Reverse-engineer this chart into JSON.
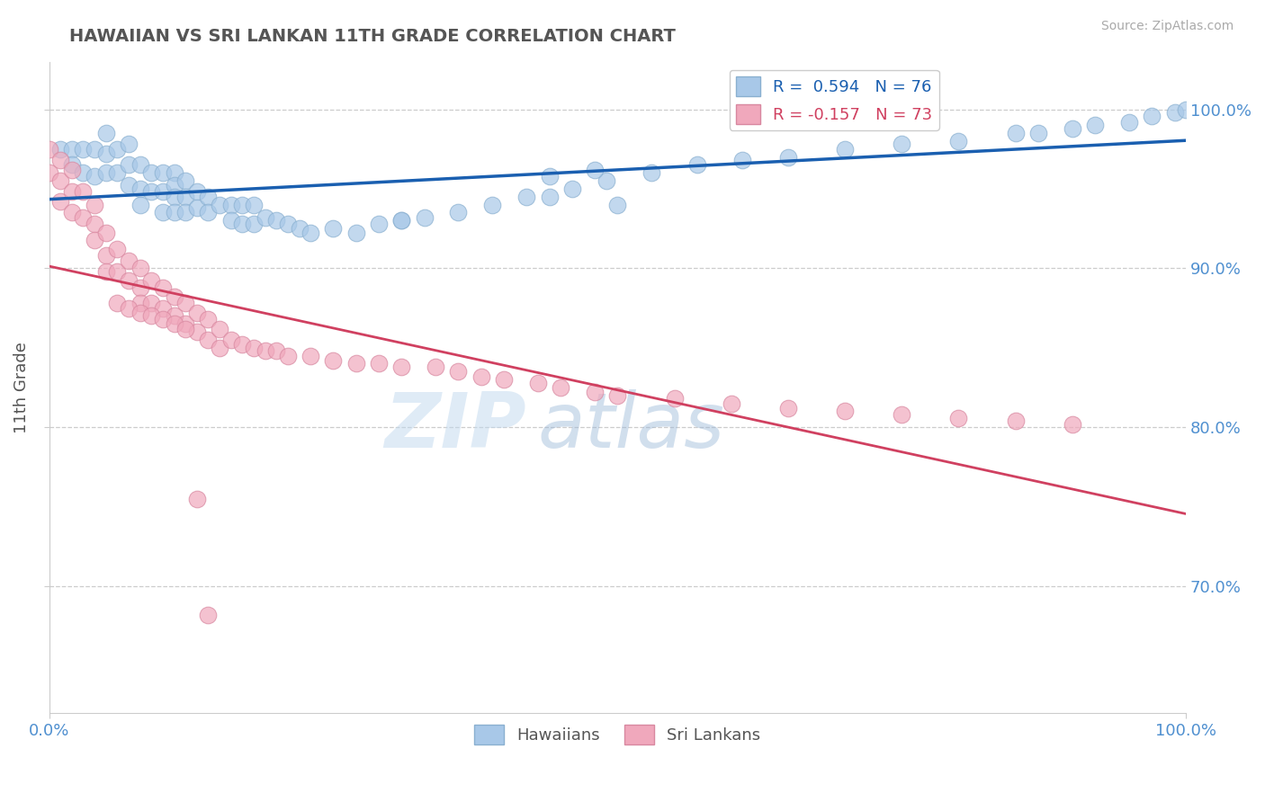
{
  "title": "HAWAIIAN VS SRI LANKAN 11TH GRADE CORRELATION CHART",
  "source": "Source: ZipAtlas.com",
  "ylabel": "11th Grade",
  "xlim": [
    0.0,
    1.0
  ],
  "ylim": [
    0.62,
    1.03
  ],
  "yticks": [
    0.7,
    0.8,
    0.9,
    1.0
  ],
  "ytick_labels": [
    "70.0%",
    "80.0%",
    "90.0%",
    "100.0%"
  ],
  "xtick_labels": [
    "0.0%",
    "100.0%"
  ],
  "legend_r1": "R =  0.594   N = 76",
  "legend_r2": "R = -0.157   N = 73",
  "hawaiian_color": "#a8c8e8",
  "srilanka_color": "#f0a8bc",
  "trendline_blue": "#1a5fb0",
  "trendline_pink": "#d04060",
  "legend_label1": "Hawaiians",
  "legend_label2": "Sri Lankans",
  "background_color": "#ffffff",
  "grid_color": "#cccccc",
  "watermark_zip": "ZIP",
  "watermark_atlas": "atlas",
  "title_color": "#555555",
  "label_color": "#5090d0",
  "hawaiian_x": [
    0.01,
    0.02,
    0.02,
    0.03,
    0.03,
    0.04,
    0.04,
    0.05,
    0.05,
    0.05,
    0.06,
    0.06,
    0.07,
    0.07,
    0.07,
    0.08,
    0.08,
    0.08,
    0.09,
    0.09,
    0.1,
    0.1,
    0.1,
    0.11,
    0.11,
    0.11,
    0.11,
    0.12,
    0.12,
    0.12,
    0.13,
    0.13,
    0.14,
    0.14,
    0.15,
    0.16,
    0.16,
    0.17,
    0.17,
    0.18,
    0.18,
    0.19,
    0.2,
    0.21,
    0.22,
    0.23,
    0.25,
    0.27,
    0.29,
    0.31,
    0.33,
    0.36,
    0.39,
    0.42,
    0.46,
    0.49,
    0.53,
    0.57,
    0.61,
    0.65,
    0.7,
    0.75,
    0.8,
    0.85,
    0.87,
    0.9,
    0.92,
    0.95,
    0.97,
    0.99,
    1.0,
    0.44,
    0.48,
    0.44,
    0.31,
    0.5
  ],
  "hawaiian_y": [
    0.975,
    0.975,
    0.965,
    0.975,
    0.96,
    0.975,
    0.958,
    0.985,
    0.972,
    0.96,
    0.975,
    0.96,
    0.978,
    0.965,
    0.952,
    0.965,
    0.95,
    0.94,
    0.96,
    0.948,
    0.96,
    0.948,
    0.935,
    0.96,
    0.952,
    0.945,
    0.935,
    0.955,
    0.945,
    0.935,
    0.948,
    0.938,
    0.945,
    0.935,
    0.94,
    0.94,
    0.93,
    0.94,
    0.928,
    0.94,
    0.928,
    0.932,
    0.93,
    0.928,
    0.925,
    0.922,
    0.925,
    0.922,
    0.928,
    0.93,
    0.932,
    0.935,
    0.94,
    0.945,
    0.95,
    0.955,
    0.96,
    0.965,
    0.968,
    0.97,
    0.975,
    0.978,
    0.98,
    0.985,
    0.985,
    0.988,
    0.99,
    0.992,
    0.996,
    0.998,
    1.0,
    0.958,
    0.962,
    0.945,
    0.93,
    0.94
  ],
  "srilanka_x": [
    0.0,
    0.0,
    0.01,
    0.01,
    0.01,
    0.02,
    0.02,
    0.02,
    0.03,
    0.03,
    0.04,
    0.04,
    0.04,
    0.05,
    0.05,
    0.05,
    0.06,
    0.06,
    0.07,
    0.07,
    0.08,
    0.08,
    0.08,
    0.09,
    0.09,
    0.1,
    0.1,
    0.11,
    0.11,
    0.12,
    0.12,
    0.13,
    0.13,
    0.14,
    0.14,
    0.15,
    0.15,
    0.16,
    0.17,
    0.18,
    0.19,
    0.2,
    0.21,
    0.23,
    0.25,
    0.27,
    0.29,
    0.31,
    0.34,
    0.36,
    0.38,
    0.4,
    0.43,
    0.45,
    0.48,
    0.5,
    0.55,
    0.6,
    0.65,
    0.7,
    0.75,
    0.8,
    0.85,
    0.9,
    0.06,
    0.07,
    0.08,
    0.09,
    0.1,
    0.11,
    0.12,
    0.13,
    0.14
  ],
  "srilanka_y": [
    0.975,
    0.96,
    0.968,
    0.955,
    0.942,
    0.962,
    0.948,
    0.935,
    0.948,
    0.932,
    0.94,
    0.928,
    0.918,
    0.922,
    0.908,
    0.898,
    0.912,
    0.898,
    0.905,
    0.892,
    0.9,
    0.888,
    0.878,
    0.892,
    0.878,
    0.888,
    0.875,
    0.882,
    0.87,
    0.878,
    0.865,
    0.872,
    0.86,
    0.868,
    0.855,
    0.862,
    0.85,
    0.855,
    0.852,
    0.85,
    0.848,
    0.848,
    0.845,
    0.845,
    0.842,
    0.84,
    0.84,
    0.838,
    0.838,
    0.835,
    0.832,
    0.83,
    0.828,
    0.825,
    0.822,
    0.82,
    0.818,
    0.815,
    0.812,
    0.81,
    0.808,
    0.806,
    0.804,
    0.802,
    0.878,
    0.875,
    0.872,
    0.87,
    0.868,
    0.865,
    0.862,
    0.755,
    0.682
  ]
}
